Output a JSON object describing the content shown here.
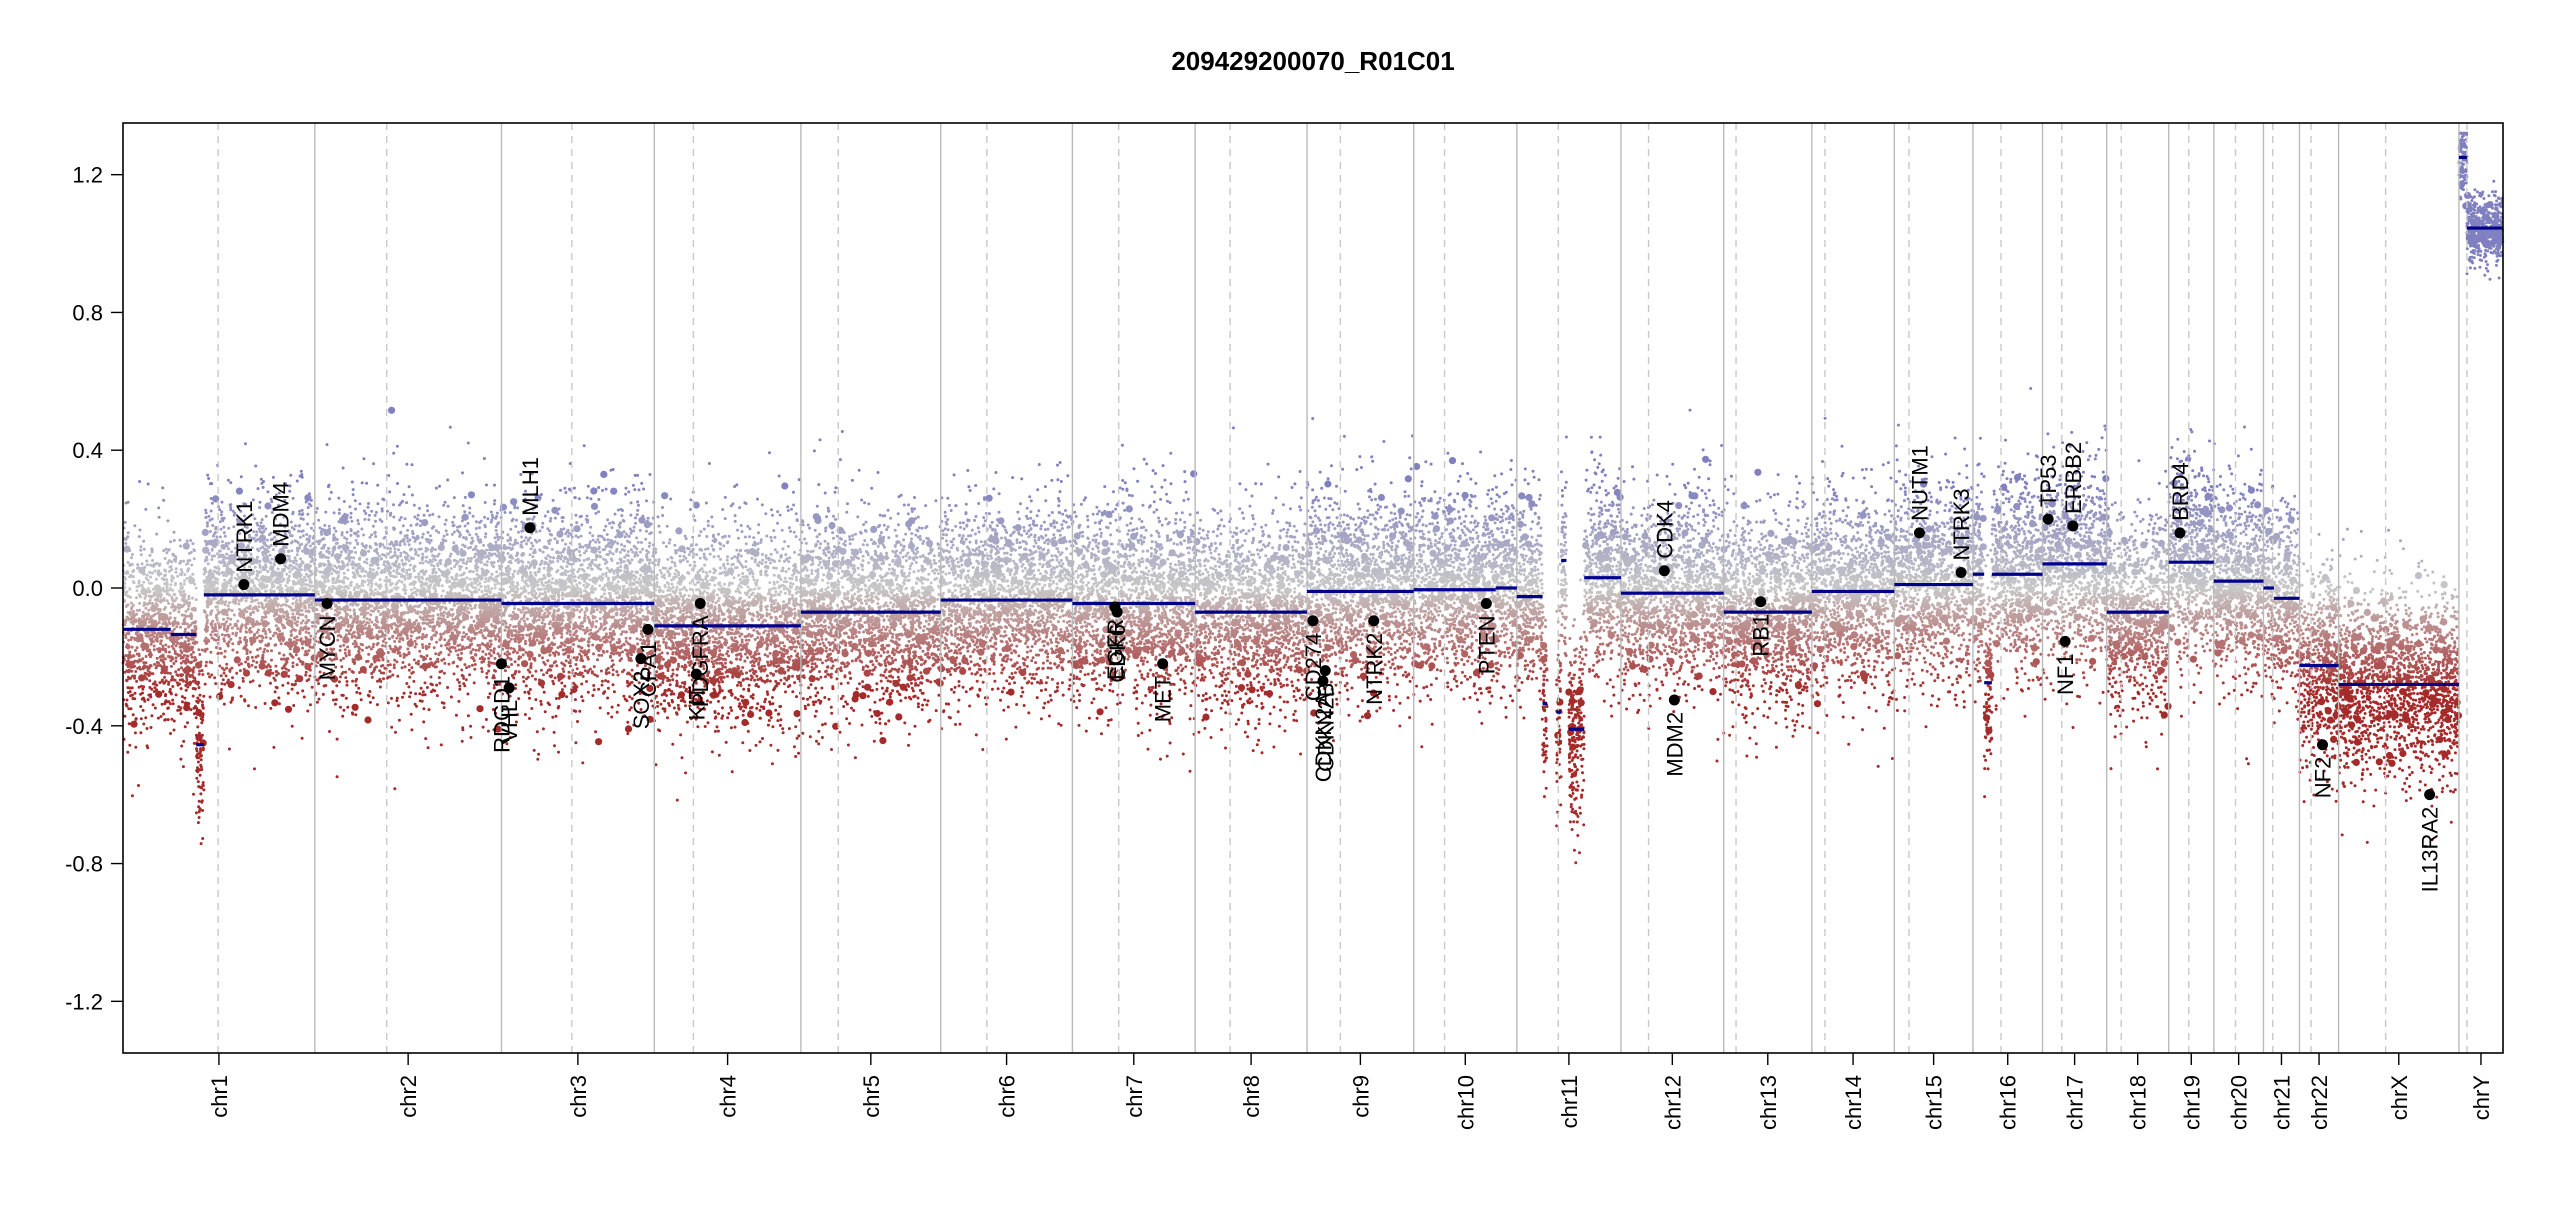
{
  "chart_data": {
    "type": "scatter",
    "title": "209429200070_R01C01",
    "xlabel": "",
    "ylabel": "",
    "ylim": [
      -1.35,
      1.35
    ],
    "y_ticks": [
      1.2,
      0.8,
      0.4,
      0.0,
      -0.4,
      -0.8,
      -1.2
    ],
    "y_tick_labels": [
      "1.2",
      "0.8",
      "0.4",
      "0.0",
      "-0.4",
      "-0.8",
      "-1.2"
    ],
    "grid": false,
    "colors": {
      "segment": "#00008b",
      "gain_points": "#8080c0",
      "neutral_points": "#bdbdbd",
      "loss_points": "#a52a2a",
      "gene_marker": "#000000",
      "chrom_boundary": "#bbbbbb",
      "centromere": "#c8c8c8"
    },
    "chromosomes": [
      {
        "name": "chr1",
        "start": 0.0,
        "end": 248.9,
        "centromere": 123.4
      },
      {
        "name": "chr2",
        "start": 248.9,
        "end": 491.1,
        "centromere": 342.2
      },
      {
        "name": "chr3",
        "start": 491.1,
        "end": 689.4,
        "centromere": 582.4
      },
      {
        "name": "chr4",
        "start": 689.4,
        "end": 879.6,
        "centromere": 740.1
      },
      {
        "name": "chr5",
        "start": 879.6,
        "end": 1061.1,
        "centromere": 928.1
      },
      {
        "name": "chr6",
        "start": 1061.1,
        "end": 1231.9,
        "centromere": 1120.9
      },
      {
        "name": "chr7",
        "start": 1231.9,
        "end": 1391.2,
        "centromere": 1292.0
      },
      {
        "name": "chr8",
        "start": 1391.2,
        "end": 1536.4,
        "centromere": 1436.5
      },
      {
        "name": "chr9",
        "start": 1536.4,
        "end": 1674.8,
        "centromere": 1579.6
      },
      {
        "name": "chr10",
        "start": 1674.8,
        "end": 1808.6,
        "centromere": 1714.8
      },
      {
        "name": "chr11",
        "start": 1808.6,
        "end": 1943.7,
        "centromere": 1862.4
      },
      {
        "name": "chr12",
        "start": 1943.7,
        "end": 2077.0,
        "centromere": 1979.5
      },
      {
        "name": "chr13",
        "start": 2077.0,
        "end": 2191.4,
        "centromere": 2093.0
      },
      {
        "name": "chr14",
        "start": 2191.4,
        "end": 2298.4,
        "centromere": 2208.4
      },
      {
        "name": "chr15",
        "start": 2298.4,
        "end": 2400.4,
        "centromere": 2317.4
      },
      {
        "name": "chr16",
        "start": 2400.4,
        "end": 2490.7,
        "centromere": 2436.8
      },
      {
        "name": "chr17",
        "start": 2490.7,
        "end": 2574.0,
        "centromere": 2515.7
      },
      {
        "name": "chr18",
        "start": 2574.0,
        "end": 2654.4,
        "centromere": 2592.8
      },
      {
        "name": "chr19",
        "start": 2654.4,
        "end": 2713.0,
        "centromere": 2680.5
      },
      {
        "name": "chr20",
        "start": 2713.0,
        "end": 2777.4,
        "centromere": 2741.1
      },
      {
        "name": "chr21",
        "start": 2777.4,
        "end": 2824.1,
        "centromere": 2789.4
      },
      {
        "name": "chr22",
        "start": 2824.1,
        "end": 2874.9,
        "centromere": 2839.1
      },
      {
        "name": "chrX",
        "start": 2874.9,
        "end": 3031.0,
        "centromere": 2935.9
      },
      {
        "name": "chrY",
        "start": 3031.0,
        "end": 3088.2,
        "centromere": 3041.4
      }
    ],
    "segments": [
      {
        "x0": 0.0,
        "x1": 62.0,
        "y": -0.12
      },
      {
        "x0": 62.0,
        "x1": 95.0,
        "y": -0.135
      },
      {
        "x0": 95.0,
        "x1": 105.0,
        "y": -0.455
      },
      {
        "x0": 105.0,
        "x1": 248.9,
        "y": -0.02
      },
      {
        "x0": 248.9,
        "x1": 491.1,
        "y": -0.035
      },
      {
        "x0": 491.1,
        "x1": 689.4,
        "y": -0.045
      },
      {
        "x0": 689.4,
        "x1": 879.6,
        "y": -0.11
      },
      {
        "x0": 879.6,
        "x1": 1061.1,
        "y": -0.07
      },
      {
        "x0": 1061.1,
        "x1": 1231.9,
        "y": -0.035
      },
      {
        "x0": 1231.9,
        "x1": 1391.2,
        "y": -0.045
      },
      {
        "x0": 1391.2,
        "x1": 1536.4,
        "y": -0.07
      },
      {
        "x0": 1536.4,
        "x1": 1674.8,
        "y": -0.01
      },
      {
        "x0": 1674.8,
        "x1": 1781.0,
        "y": -0.005
      },
      {
        "x0": 1781.0,
        "x1": 1808.6,
        "y": 0.0
      },
      {
        "x0": 1808.6,
        "x1": 1842.0,
        "y": -0.025
      },
      {
        "x0": 1842.0,
        "x1": 1848.0,
        "y": -0.335
      },
      {
        "x0": 1860.0,
        "x1": 1866.0,
        "y": -0.36
      },
      {
        "x0": 1876.0,
        "x1": 1896.0,
        "y": -0.41
      },
      {
        "x0": 1866.0,
        "x1": 1873.0,
        "y": 0.08
      },
      {
        "x0": 1896.0,
        "x1": 1943.7,
        "y": 0.03
      },
      {
        "x0": 1943.7,
        "x1": 2077.0,
        "y": -0.015
      },
      {
        "x0": 2077.0,
        "x1": 2191.4,
        "y": -0.07
      },
      {
        "x0": 2191.4,
        "x1": 2298.4,
        "y": -0.01
      },
      {
        "x0": 2298.4,
        "x1": 2400.4,
        "y": 0.01
      },
      {
        "x0": 2400.4,
        "x1": 2415.0,
        "y": 0.04
      },
      {
        "x0": 2415.0,
        "x1": 2425.0,
        "y": -0.275
      },
      {
        "x0": 2425.0,
        "x1": 2490.7,
        "y": 0.04
      },
      {
        "x0": 2490.7,
        "x1": 2574.0,
        "y": 0.07
      },
      {
        "x0": 2574.0,
        "x1": 2654.4,
        "y": -0.07
      },
      {
        "x0": 2654.4,
        "x1": 2713.0,
        "y": 0.075
      },
      {
        "x0": 2713.0,
        "x1": 2777.4,
        "y": 0.02
      },
      {
        "x0": 2777.4,
        "x1": 2791.0,
        "y": 0.0
      },
      {
        "x0": 2791.0,
        "x1": 2824.1,
        "y": -0.03
      },
      {
        "x0": 2824.1,
        "x1": 2874.9,
        "y": -0.225
      },
      {
        "x0": 2874.9,
        "x1": 3031.0,
        "y": -0.28
      },
      {
        "x0": 3031.0,
        "x1": 3041.4,
        "y": 1.25
      },
      {
        "x0": 3041.4,
        "x1": 3088.2,
        "y": 1.045
      }
    ],
    "genes": [
      {
        "name": "NTRK1",
        "x": 156.8,
        "y": 0.01,
        "label_side": "above"
      },
      {
        "name": "MDM4",
        "x": 204.5,
        "y": 0.085,
        "label_side": "above"
      },
      {
        "name": "MYCN",
        "x": 264.8,
        "y": -0.045,
        "label_side": "below"
      },
      {
        "name": "RDGD1",
        "x": 491.0,
        "y": -0.22,
        "label_side": "below"
      },
      {
        "name": "VHL",
        "x": 501.0,
        "y": -0.29,
        "label_side": "below"
      },
      {
        "name": "MLH1",
        "x": 528.0,
        "y": 0.175,
        "label_side": "above"
      },
      {
        "name": "SOX2",
        "x": 672.0,
        "y": -0.205,
        "label_side": "below"
      },
      {
        "name": "CPA1",
        "x": 681.0,
        "y": -0.12,
        "label_side": "below"
      },
      {
        "name": "KIT",
        "x": 744.0,
        "y": -0.25,
        "label_side": "below"
      },
      {
        "name": "PDGFRA",
        "x": 749.0,
        "y": -0.045,
        "label_side": "below"
      },
      {
        "name": "EGFR",
        "x": 1287.0,
        "y": -0.055,
        "label_side": "below"
      },
      {
        "name": "CDK6",
        "x": 1290.0,
        "y": -0.07,
        "label_side": "below"
      },
      {
        "name": "MET",
        "x": 1349.0,
        "y": -0.22,
        "label_side": "below"
      },
      {
        "name": "CD274",
        "x": 1544.0,
        "y": -0.095,
        "label_side": "below"
      },
      {
        "name": "CDKN2A",
        "x": 1557.0,
        "y": -0.27,
        "label_side": "below"
      },
      {
        "name": "CDKN2B",
        "x": 1560.0,
        "y": -0.24,
        "label_side": "below"
      },
      {
        "name": "NTRK2",
        "x": 1623.0,
        "y": -0.095,
        "label_side": "below"
      },
      {
        "name": "PTEN",
        "x": 1769.0,
        "y": -0.045,
        "label_side": "below"
      },
      {
        "name": "CDK4",
        "x": 2000.0,
        "y": 0.05,
        "label_side": "above"
      },
      {
        "name": "MDM2",
        "x": 2013.0,
        "y": -0.325,
        "label_side": "below"
      },
      {
        "name": "RB1",
        "x": 2125.0,
        "y": -0.04,
        "label_side": "below"
      },
      {
        "name": "NUTM1",
        "x": 2331.0,
        "y": 0.16,
        "label_side": "above"
      },
      {
        "name": "NTRK3",
        "x": 2385.0,
        "y": 0.045,
        "label_side": "above"
      },
      {
        "name": "TP53",
        "x": 2498.0,
        "y": 0.2,
        "label_side": "above"
      },
      {
        "name": "NF1",
        "x": 2520.0,
        "y": -0.155,
        "label_side": "below"
      },
      {
        "name": "ERBB2",
        "x": 2530.0,
        "y": 0.18,
        "label_side": "above"
      },
      {
        "name": "BRD4",
        "x": 2669.0,
        "y": 0.16,
        "label_side": "above"
      },
      {
        "name": "NF2",
        "x": 2854.0,
        "y": -0.455,
        "label_side": "below"
      },
      {
        "name": "IL13RA2",
        "x": 2993.0,
        "y": -0.6,
        "label_side": "below"
      }
    ]
  }
}
